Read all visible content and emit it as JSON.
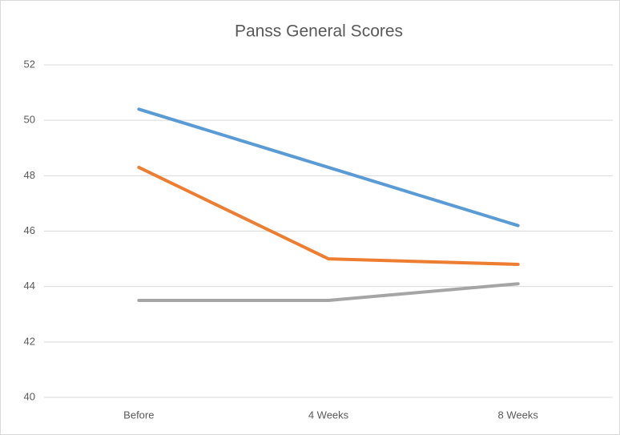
{
  "chart_data": {
    "type": "line",
    "title": "Panss General Scores",
    "categories": [
      "Before",
      "4 Weeks",
      "8 Weeks"
    ],
    "series": [
      {
        "color": "#5b9bd5",
        "values": [
          50.4,
          48.3,
          46.2
        ]
      },
      {
        "color": "#ed7d31",
        "values": [
          48.3,
          45.0,
          44.8
        ]
      },
      {
        "color": "#a5a5a5",
        "values": [
          43.5,
          43.5,
          44.1
        ]
      }
    ],
    "ylim": [
      40,
      52
    ],
    "yticks": [
      40,
      42,
      44,
      46,
      48,
      50,
      52
    ],
    "grid": true
  }
}
